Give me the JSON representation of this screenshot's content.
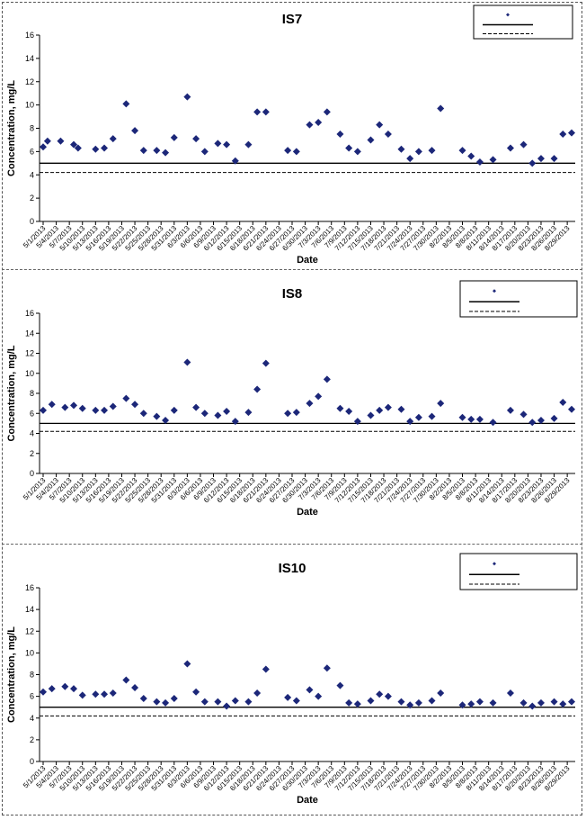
{
  "chart_data": [
    {
      "type": "scatter",
      "title": "IS7",
      "xlabel": "Date",
      "ylabel": "Concentration, mg/L",
      "ylim": [
        0,
        16
      ],
      "yticks": [
        "0",
        "2",
        "4",
        "6",
        "8",
        "10",
        "12",
        "14",
        "16"
      ],
      "xticks": [
        "5/1/2013",
        "5/4/2013",
        "5/7/2013",
        "5/10/2013",
        "5/13/2013",
        "5/16/2013",
        "5/19/2013",
        "5/22/2013",
        "5/25/2013",
        "5/28/2013",
        "5/31/2013",
        "6/3/2013",
        "6/6/2013",
        "6/9/2013",
        "6/12/2013",
        "6/15/2013",
        "6/18/2013",
        "6/21/2013",
        "6/24/2013",
        "6/27/2013",
        "6/30/2013",
        "7/3/2013",
        "7/6/2013",
        "7/9/2013",
        "7/12/2013",
        "7/15/2013",
        "7/18/2013",
        "7/21/2013",
        "7/24/2013",
        "7/27/2013",
        "7/30/2013",
        "8/2/2013",
        "8/5/2013",
        "8/8/2013",
        "8/11/2013",
        "8/14/2013",
        "8/17/2013",
        "8/20/2013",
        "8/23/2013",
        "8/26/2013",
        "8/29/2013"
      ],
      "legend_position": "top-right",
      "grid": false,
      "reference_lines": [
        5.0,
        4.2
      ],
      "points": [
        {
          "x": "5/1/2013",
          "y": 6.4
        },
        {
          "x": "5/2/2013",
          "y": 6.9
        },
        {
          "x": "5/5/2013",
          "y": 6.9
        },
        {
          "x": "5/8/2013",
          "y": 6.6
        },
        {
          "x": "5/9/2013",
          "y": 6.3
        },
        {
          "x": "5/13/2013",
          "y": 6.2
        },
        {
          "x": "5/15/2013",
          "y": 6.3
        },
        {
          "x": "5/17/2013",
          "y": 7.1
        },
        {
          "x": "5/20/2013",
          "y": 10.1
        },
        {
          "x": "5/22/2013",
          "y": 7.8
        },
        {
          "x": "5/24/2013",
          "y": 6.1
        },
        {
          "x": "5/27/2013",
          "y": 6.1
        },
        {
          "x": "5/29/2013",
          "y": 5.9
        },
        {
          "x": "5/31/2013",
          "y": 7.2
        },
        {
          "x": "6/3/2013",
          "y": 10.7
        },
        {
          "x": "6/5/2013",
          "y": 7.1
        },
        {
          "x": "6/7/2013",
          "y": 6.0
        },
        {
          "x": "6/10/2013",
          "y": 6.7
        },
        {
          "x": "6/12/2013",
          "y": 6.6
        },
        {
          "x": "6/14/2013",
          "y": 5.2
        },
        {
          "x": "6/17/2013",
          "y": 6.6
        },
        {
          "x": "6/19/2013",
          "y": 9.4
        },
        {
          "x": "6/21/2013",
          "y": 9.4
        },
        {
          "x": "6/26/2013",
          "y": 6.1
        },
        {
          "x": "6/28/2013",
          "y": 6.0
        },
        {
          "x": "7/1/2013",
          "y": 8.3
        },
        {
          "x": "7/3/2013",
          "y": 8.5
        },
        {
          "x": "7/5/2013",
          "y": 9.4
        },
        {
          "x": "7/8/2013",
          "y": 7.5
        },
        {
          "x": "7/10/2013",
          "y": 6.3
        },
        {
          "x": "7/12/2013",
          "y": 6.0
        },
        {
          "x": "7/15/2013",
          "y": 7.0
        },
        {
          "x": "7/17/2013",
          "y": 8.3
        },
        {
          "x": "7/19/2013",
          "y": 7.5
        },
        {
          "x": "7/22/2013",
          "y": 6.2
        },
        {
          "x": "7/24/2013",
          "y": 5.4
        },
        {
          "x": "7/26/2013",
          "y": 6.0
        },
        {
          "x": "7/29/2013",
          "y": 6.1
        },
        {
          "x": "7/31/2013",
          "y": 9.7
        },
        {
          "x": "8/5/2013",
          "y": 6.1
        },
        {
          "x": "8/7/2013",
          "y": 5.6
        },
        {
          "x": "8/9/2013",
          "y": 5.1
        },
        {
          "x": "8/12/2013",
          "y": 5.3
        },
        {
          "x": "8/16/2013",
          "y": 6.3
        },
        {
          "x": "8/19/2013",
          "y": 6.6
        },
        {
          "x": "8/21/2013",
          "y": 5.0
        },
        {
          "x": "8/23/2013",
          "y": 5.4
        },
        {
          "x": "8/26/2013",
          "y": 5.4
        },
        {
          "x": "8/28/2013",
          "y": 7.5
        },
        {
          "x": "8/30/2013",
          "y": 7.6
        }
      ]
    },
    {
      "type": "scatter",
      "title": "IS8",
      "xlabel": "Date",
      "ylabel": "Concentration, mg/L",
      "ylim": [
        0,
        16
      ],
      "yticks": [
        "0",
        "2",
        "4",
        "6",
        "8",
        "10",
        "12",
        "14",
        "16"
      ],
      "xticks": [
        "5/1/2013",
        "5/4/2013",
        "5/7/2013",
        "5/10/2013",
        "5/13/2013",
        "5/16/2013",
        "5/19/2013",
        "5/22/2013",
        "5/25/2013",
        "5/28/2013",
        "5/31/2013",
        "6/3/2013",
        "6/6/2013",
        "6/9/2013",
        "6/12/2013",
        "6/15/2013",
        "6/18/2013",
        "6/21/2013",
        "6/24/2013",
        "6/27/2013",
        "6/30/2013",
        "7/3/2013",
        "7/6/2013",
        "7/9/2013",
        "7/12/2013",
        "7/15/2013",
        "7/18/2013",
        "7/21/2013",
        "7/24/2013",
        "7/27/2013",
        "7/30/2013",
        "8/2/2013",
        "8/5/2013",
        "8/8/2013",
        "8/11/2013",
        "8/14/2013",
        "8/17/2013",
        "8/20/2013",
        "8/23/2013",
        "8/26/2013",
        "8/29/2013"
      ],
      "legend_position": "top-right",
      "grid": false,
      "reference_lines": [
        5.0,
        4.2
      ],
      "points": [
        {
          "x": "5/1/2013",
          "y": 6.3
        },
        {
          "x": "5/3/2013",
          "y": 6.9
        },
        {
          "x": "5/6/2013",
          "y": 6.6
        },
        {
          "x": "5/8/2013",
          "y": 6.8
        },
        {
          "x": "5/10/2013",
          "y": 6.5
        },
        {
          "x": "5/13/2013",
          "y": 6.3
        },
        {
          "x": "5/15/2013",
          "y": 6.3
        },
        {
          "x": "5/17/2013",
          "y": 6.7
        },
        {
          "x": "5/20/2013",
          "y": 7.5
        },
        {
          "x": "5/22/2013",
          "y": 6.9
        },
        {
          "x": "5/24/2013",
          "y": 6.0
        },
        {
          "x": "5/27/2013",
          "y": 5.7
        },
        {
          "x": "5/29/2013",
          "y": 5.3
        },
        {
          "x": "5/31/2013",
          "y": 6.3
        },
        {
          "x": "6/3/2013",
          "y": 11.1
        },
        {
          "x": "6/5/2013",
          "y": 6.6
        },
        {
          "x": "6/7/2013",
          "y": 6.0
        },
        {
          "x": "6/10/2013",
          "y": 5.8
        },
        {
          "x": "6/12/2013",
          "y": 6.2
        },
        {
          "x": "6/14/2013",
          "y": 5.2
        },
        {
          "x": "6/17/2013",
          "y": 6.1
        },
        {
          "x": "6/19/2013",
          "y": 8.4
        },
        {
          "x": "6/21/2013",
          "y": 11.0
        },
        {
          "x": "6/26/2013",
          "y": 6.0
        },
        {
          "x": "6/28/2013",
          "y": 6.1
        },
        {
          "x": "7/1/2013",
          "y": 7.0
        },
        {
          "x": "7/3/2013",
          "y": 7.7
        },
        {
          "x": "7/5/2013",
          "y": 9.4
        },
        {
          "x": "7/8/2013",
          "y": 6.5
        },
        {
          "x": "7/10/2013",
          "y": 6.2
        },
        {
          "x": "7/12/2013",
          "y": 5.2
        },
        {
          "x": "7/15/2013",
          "y": 5.8
        },
        {
          "x": "7/17/2013",
          "y": 6.3
        },
        {
          "x": "7/19/2013",
          "y": 6.6
        },
        {
          "x": "7/22/2013",
          "y": 6.4
        },
        {
          "x": "7/24/2013",
          "y": 5.2
        },
        {
          "x": "7/26/2013",
          "y": 5.6
        },
        {
          "x": "7/29/2013",
          "y": 5.7
        },
        {
          "x": "7/31/2013",
          "y": 7.0
        },
        {
          "x": "8/5/2013",
          "y": 5.6
        },
        {
          "x": "8/7/2013",
          "y": 5.4
        },
        {
          "x": "8/9/2013",
          "y": 5.4
        },
        {
          "x": "8/12/2013",
          "y": 5.1
        },
        {
          "x": "8/16/2013",
          "y": 6.3
        },
        {
          "x": "8/19/2013",
          "y": 5.9
        },
        {
          "x": "8/21/2013",
          "y": 5.1
        },
        {
          "x": "8/23/2013",
          "y": 5.3
        },
        {
          "x": "8/26/2013",
          "y": 5.5
        },
        {
          "x": "8/28/2013",
          "y": 7.1
        },
        {
          "x": "8/30/2013",
          "y": 6.4
        }
      ]
    },
    {
      "type": "scatter",
      "title": "IS10",
      "xlabel": "Date",
      "ylabel": "Concentration, mg/L",
      "ylim": [
        0,
        16
      ],
      "yticks": [
        "0",
        "2",
        "4",
        "6",
        "8",
        "10",
        "12",
        "14",
        "16"
      ],
      "xticks": [
        "5/1/2013",
        "5/4/2013",
        "5/7/2013",
        "5/10/2013",
        "5/13/2013",
        "5/16/2013",
        "5/19/2013",
        "5/22/2013",
        "5/25/2013",
        "5/28/2013",
        "5/31/2013",
        "6/3/2013",
        "6/6/2013",
        "6/9/2013",
        "6/12/2013",
        "6/15/2013",
        "6/18/2013",
        "6/21/2013",
        "6/24/2013",
        "6/27/2013",
        "6/30/2013",
        "7/3/2013",
        "7/6/2013",
        "7/9/2013",
        "7/12/2013",
        "7/15/2013",
        "7/18/2013",
        "7/21/2013",
        "7/24/2013",
        "7/27/2013",
        "7/30/2013",
        "8/2/2013",
        "8/5/2013",
        "8/8/2013",
        "8/11/2013",
        "8/14/2013",
        "8/17/2013",
        "8/20/2013",
        "8/23/2013",
        "8/26/2013",
        "8/29/2013"
      ],
      "legend_position": "top-right",
      "grid": false,
      "reference_lines": [
        5.0,
        4.2
      ],
      "points": [
        {
          "x": "5/1/2013",
          "y": 6.4
        },
        {
          "x": "5/3/2013",
          "y": 6.7
        },
        {
          "x": "5/6/2013",
          "y": 6.9
        },
        {
          "x": "5/8/2013",
          "y": 6.7
        },
        {
          "x": "5/10/2013",
          "y": 6.1
        },
        {
          "x": "5/13/2013",
          "y": 6.2
        },
        {
          "x": "5/15/2013",
          "y": 6.2
        },
        {
          "x": "5/17/2013",
          "y": 6.3
        },
        {
          "x": "5/20/2013",
          "y": 7.5
        },
        {
          "x": "5/22/2013",
          "y": 6.8
        },
        {
          "x": "5/24/2013",
          "y": 5.8
        },
        {
          "x": "5/27/2013",
          "y": 5.5
        },
        {
          "x": "5/29/2013",
          "y": 5.4
        },
        {
          "x": "5/31/2013",
          "y": 5.8
        },
        {
          "x": "6/3/2013",
          "y": 9.0
        },
        {
          "x": "6/5/2013",
          "y": 6.4
        },
        {
          "x": "6/7/2013",
          "y": 5.5
        },
        {
          "x": "6/10/2013",
          "y": 5.5
        },
        {
          "x": "6/12/2013",
          "y": 5.1
        },
        {
          "x": "6/14/2013",
          "y": 5.6
        },
        {
          "x": "6/17/2013",
          "y": 5.5
        },
        {
          "x": "6/19/2013",
          "y": 6.3
        },
        {
          "x": "6/21/2013",
          "y": 8.5
        },
        {
          "x": "6/26/2013",
          "y": 5.9
        },
        {
          "x": "6/28/2013",
          "y": 5.6
        },
        {
          "x": "7/1/2013",
          "y": 6.6
        },
        {
          "x": "7/3/2013",
          "y": 6.0
        },
        {
          "x": "7/5/2013",
          "y": 8.6
        },
        {
          "x": "7/8/2013",
          "y": 7.0
        },
        {
          "x": "7/10/2013",
          "y": 5.4
        },
        {
          "x": "7/12/2013",
          "y": 5.3
        },
        {
          "x": "7/15/2013",
          "y": 5.6
        },
        {
          "x": "7/17/2013",
          "y": 6.2
        },
        {
          "x": "7/19/2013",
          "y": 6.0
        },
        {
          "x": "7/22/2013",
          "y": 5.5
        },
        {
          "x": "7/24/2013",
          "y": 5.2
        },
        {
          "x": "7/26/2013",
          "y": 5.4
        },
        {
          "x": "7/29/2013",
          "y": 5.6
        },
        {
          "x": "7/31/2013",
          "y": 6.3
        },
        {
          "x": "8/5/2013",
          "y": 5.2
        },
        {
          "x": "8/7/2013",
          "y": 5.3
        },
        {
          "x": "8/9/2013",
          "y": 5.5
        },
        {
          "x": "8/12/2013",
          "y": 5.4
        },
        {
          "x": "8/16/2013",
          "y": 6.3
        },
        {
          "x": "8/19/2013",
          "y": 5.4
        },
        {
          "x": "8/21/2013",
          "y": 5.1
        },
        {
          "x": "8/23/2013",
          "y": 5.4
        },
        {
          "x": "8/26/2013",
          "y": 5.5
        },
        {
          "x": "8/28/2013",
          "y": 5.3
        },
        {
          "x": "8/30/2013",
          "y": 5.5
        }
      ]
    }
  ]
}
